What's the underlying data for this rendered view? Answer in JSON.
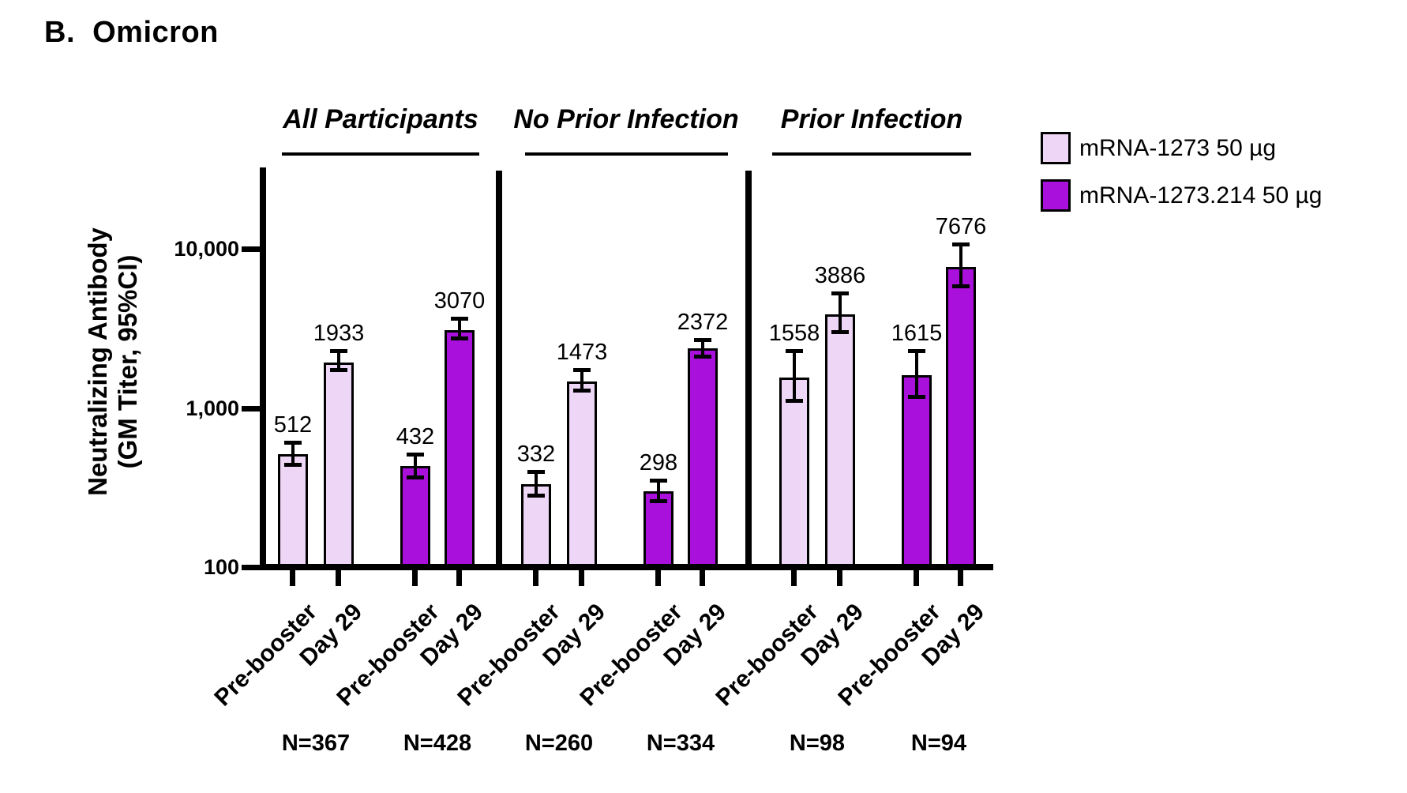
{
  "title": "B.  Omicron",
  "chart_data": {
    "type": "bar",
    "panel_label": "B. Omicron",
    "yaxis": {
      "label_line1": "Neutralizing Antibody",
      "label_line2": "(GM Titer, 95%CI)",
      "scale": "log",
      "ylim": [
        100,
        32000
      ],
      "tick_values": [
        100,
        1000,
        10000
      ],
      "tick_labels": [
        "100",
        "1,000",
        "10,000"
      ]
    },
    "series": [
      {
        "name": "mRNA-1273 50 µg",
        "color": "#EED7F6"
      },
      {
        "name": "mRNA-1273.214 50 µg",
        "color": "#AA10DC"
      }
    ],
    "legend_position": "upper right",
    "grid": false,
    "error_bar_meaning": "95%CI",
    "groups": [
      {
        "name": "All Participants",
        "n_labels": [
          "N=367",
          "N=428"
        ],
        "bars": [
          {
            "series": 0,
            "timepoint": "Pre-booster",
            "value": 512,
            "ci_low": 435,
            "ci_high": 610
          },
          {
            "series": 0,
            "timepoint": "Day 29",
            "value": 1933,
            "ci_low": 1720,
            "ci_high": 2290
          },
          {
            "series": 1,
            "timepoint": "Pre-booster",
            "value": 432,
            "ci_low": 364,
            "ci_high": 513
          },
          {
            "series": 1,
            "timepoint": "Day 29",
            "value": 3070,
            "ci_low": 2730,
            "ci_high": 3650
          }
        ]
      },
      {
        "name": "No Prior Infection",
        "n_labels": [
          "N=260",
          "N=334"
        ],
        "bars": [
          {
            "series": 0,
            "timepoint": "Pre-booster",
            "value": 332,
            "ci_low": 280,
            "ci_high": 399
          },
          {
            "series": 0,
            "timepoint": "Day 29",
            "value": 1473,
            "ci_low": 1283,
            "ci_high": 1745
          },
          {
            "series": 1,
            "timepoint": "Pre-booster",
            "value": 298,
            "ci_low": 258,
            "ci_high": 352
          },
          {
            "series": 1,
            "timepoint": "Day 29",
            "value": 2372,
            "ci_low": 2090,
            "ci_high": 2700
          }
        ]
      },
      {
        "name": "Prior Infection",
        "n_labels": [
          "N=98",
          "N=94"
        ],
        "bars": [
          {
            "series": 0,
            "timepoint": "Pre-booster",
            "value": 1558,
            "ci_low": 1100,
            "ci_high": 2290
          },
          {
            "series": 0,
            "timepoint": "Day 29",
            "value": 3886,
            "ci_low": 2980,
            "ci_high": 5300
          },
          {
            "series": 1,
            "timepoint": "Pre-booster",
            "value": 1615,
            "ci_low": 1170,
            "ci_high": 2300
          },
          {
            "series": 1,
            "timepoint": "Day 29",
            "value": 7676,
            "ci_low": 5780,
            "ci_high": 10700
          }
        ]
      }
    ]
  }
}
